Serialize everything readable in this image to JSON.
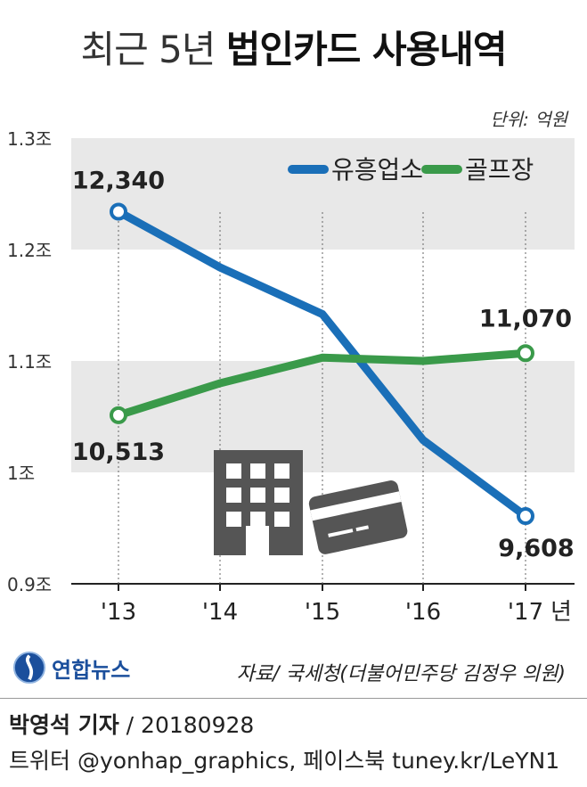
{
  "title": {
    "light": "최근 5년",
    "bold": "법인카드 사용내역"
  },
  "unit": "단위: 억원",
  "chart_data": {
    "type": "line",
    "categories": [
      "'13",
      "'14",
      "'15",
      "'16",
      "'17"
    ],
    "x_suffix": "년",
    "y_ticks": [
      {
        "value": 13000,
        "label": "1.3조"
      },
      {
        "value": 12000,
        "label": "1.2조"
      },
      {
        "value": 11000,
        "label": "1.1조"
      },
      {
        "value": 10000,
        "label": "1조"
      },
      {
        "value": 9000,
        "label": "0.9조"
      }
    ],
    "ylim": [
      9000,
      13000
    ],
    "series": [
      {
        "name": "유흥업소",
        "color": "#1a6fb8",
        "values": [
          12340,
          11840,
          11420,
          10290,
          9608
        ],
        "labels": [
          {
            "index": 0,
            "text": "12,340"
          },
          {
            "index": 4,
            "text": "9,608"
          }
        ]
      },
      {
        "name": "골프장",
        "color": "#3a9a4a",
        "values": [
          10513,
          10800,
          11030,
          11000,
          11070
        ],
        "labels": [
          {
            "index": 0,
            "text": "10,513"
          },
          {
            "index": 4,
            "text": "11,070"
          }
        ]
      }
    ],
    "legend_position": "top-right",
    "grid_bands": true
  },
  "logo_text": "연합뉴스",
  "source": "자료/ 국세청(더불어민주당 김정우 의원)",
  "credit_byline": "박영석 기자",
  "credit_date": " / 20180928",
  "credit_line2": "트위터 @yonhap_graphics, 페이스북 tuney.kr/LeYN1",
  "colors": {
    "band": "#e8e8e8",
    "icon": "#555555"
  }
}
